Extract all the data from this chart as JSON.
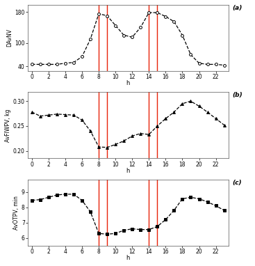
{
  "panel_a": {
    "ylabel": "DAvNV",
    "xlabel": "h",
    "label": "(a)",
    "yticks": [
      40,
      100,
      180
    ],
    "ylim": [
      28,
      198
    ],
    "xlim": [
      -0.5,
      23.5
    ],
    "xticks": [
      0,
      2,
      4,
      6,
      8,
      10,
      12,
      14,
      16,
      18,
      20,
      22
    ],
    "x": [
      0,
      1,
      2,
      3,
      4,
      5,
      6,
      7,
      8,
      9,
      10,
      11,
      12,
      13,
      14,
      15,
      16,
      17,
      18,
      19,
      20,
      21,
      22,
      23
    ],
    "y": [
      45,
      45,
      45,
      45,
      48,
      50,
      65,
      110,
      175,
      170,
      145,
      120,
      115,
      140,
      178,
      178,
      168,
      155,
      120,
      70,
      48,
      45,
      45,
      43
    ],
    "red_lines": [
      8,
      9,
      14,
      15
    ],
    "marker": "o",
    "linestyle": "--"
  },
  "panel_b": {
    "ylabel": "AvFIWPV, kg",
    "xlabel": "h",
    "label": "(b)",
    "yticks": [
      0.2,
      0.25,
      0.3
    ],
    "ylim": [
      0.185,
      0.318
    ],
    "xlim": [
      -0.5,
      23.5
    ],
    "xticks": [
      0,
      2,
      4,
      6,
      8,
      10,
      12,
      14,
      16,
      18,
      20,
      22
    ],
    "x": [
      0,
      1,
      2,
      3,
      4,
      5,
      6,
      7,
      8,
      9,
      10,
      11,
      12,
      13,
      14,
      15,
      16,
      17,
      18,
      19,
      20,
      21,
      22,
      23
    ],
    "y": [
      0.278,
      0.27,
      0.272,
      0.274,
      0.273,
      0.272,
      0.262,
      0.24,
      0.208,
      0.207,
      0.213,
      0.22,
      0.23,
      0.235,
      0.233,
      0.25,
      0.265,
      0.278,
      0.295,
      0.3,
      0.29,
      0.278,
      0.265,
      0.252
    ],
    "red_lines": [
      8,
      9,
      14,
      15
    ],
    "marker": "^",
    "linestyle": "--"
  },
  "panel_c": {
    "ylabel": "AvOTPV, min",
    "xlabel": "h",
    "label": "(c)",
    "yticks": [
      6,
      7,
      8,
      9
    ],
    "ylim": [
      5.5,
      9.8
    ],
    "xlim": [
      -0.5,
      23.5
    ],
    "xticks": [
      0,
      2,
      4,
      6,
      8,
      10,
      12,
      14,
      16,
      18,
      20,
      22
    ],
    "x": [
      0,
      1,
      2,
      3,
      4,
      5,
      6,
      7,
      8,
      9,
      10,
      11,
      12,
      13,
      14,
      15,
      16,
      17,
      18,
      19,
      20,
      21,
      22,
      23
    ],
    "y": [
      8.45,
      8.5,
      8.65,
      8.8,
      8.85,
      8.85,
      8.45,
      7.7,
      6.3,
      6.25,
      6.3,
      6.5,
      6.6,
      6.55,
      6.55,
      6.75,
      7.2,
      7.8,
      8.55,
      8.65,
      8.55,
      8.35,
      8.1,
      7.8
    ],
    "red_lines": [
      8,
      9,
      14,
      15
    ],
    "marker": "s",
    "linestyle": "--"
  },
  "line_color": "#000000",
  "red_line_color": "#e8230a",
  "background_color": "#ffffff",
  "marker_size": 2.8,
  "linewidth": 0.9,
  "red_linewidth": 1.0
}
